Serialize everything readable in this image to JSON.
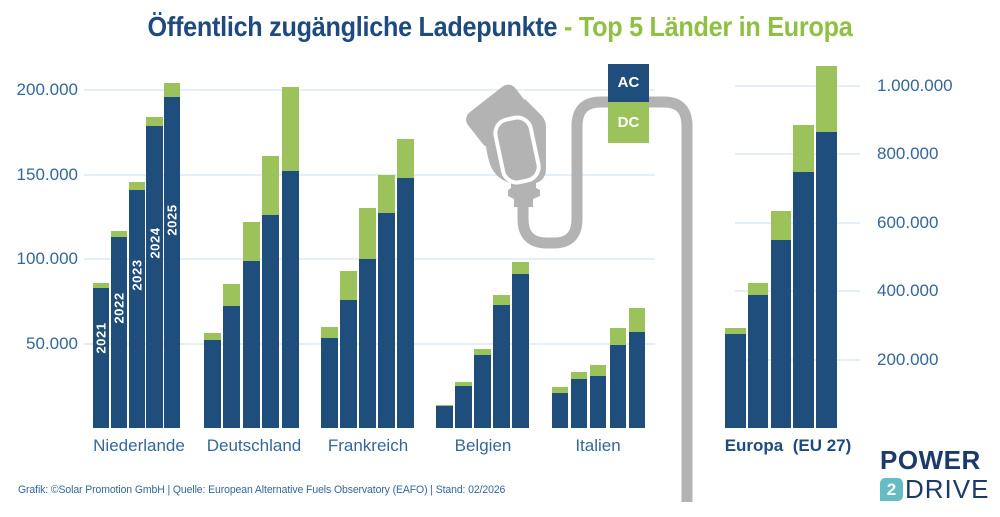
{
  "title": {
    "part1": "Öffentlich zugängliche Ladepunkte",
    "part2": "- Top 5 Länder in Europa"
  },
  "legend": {
    "ac": "AC",
    "dc": "DC"
  },
  "footer": "Grafik: ©Solar Promotion GmbH | Quelle: European Alternative Fuels Observatory (EAFO) | Stand: 02/2026",
  "logo": {
    "line1": "POWER",
    "number": "2",
    "line2": "DRIVE"
  },
  "icons": {
    "illustration": "ev-charging-plug-with-cable-icon"
  },
  "colors": {
    "bar_blue": "#1f4e7d",
    "bar_green": "#9cc25b",
    "title_blue": "#1d4a80",
    "title_green": "#8fc043",
    "axis_text": "#34679a",
    "gridline": "#e6eef7",
    "cable_gray": "#b3b3b3",
    "logo_navy": "#1b3a6b",
    "logo_teal": "#66bcc3"
  },
  "chart_data": {
    "type": "bar",
    "stacked": true,
    "grid": true,
    "years": [
      "2021",
      "2022",
      "2023",
      "2024",
      "2025"
    ],
    "series_names": [
      "AC",
      "DC"
    ],
    "left_axis": {
      "max": 200000,
      "ticks": [
        {
          "label": "200.000",
          "value": 200000
        },
        {
          "label": "150.000",
          "value": 150000
        },
        {
          "label": "100.000",
          "value": 100000
        },
        {
          "label": "50.000",
          "value": 50000
        }
      ]
    },
    "right_axis": {
      "max": 1000000,
      "ticks": [
        {
          "label": "1.000.000",
          "value": 1000000
        },
        {
          "label": "800.000",
          "value": 800000
        },
        {
          "label": "600.000",
          "value": 600000
        },
        {
          "label": "400.000",
          "value": 400000
        },
        {
          "label": "200.000",
          "value": 200000
        }
      ]
    },
    "groups": [
      {
        "label": "Niederlande",
        "axis": "left",
        "show_year_labels": true,
        "ac": [
          83000,
          113000,
          141000,
          179000,
          196000
        ],
        "dc": [
          3000,
          3500,
          4500,
          5000,
          8000
        ]
      },
      {
        "label": "Deutschland",
        "axis": "left",
        "ac": [
          52000,
          72000,
          99000,
          126000,
          152000
        ],
        "dc": [
          4000,
          13000,
          23000,
          35000,
          50000
        ]
      },
      {
        "label": "Frankreich",
        "axis": "left",
        "ac": [
          53000,
          76000,
          100000,
          127000,
          148000
        ],
        "dc": [
          7000,
          17000,
          30000,
          23000,
          23000
        ]
      },
      {
        "label": "Belgien",
        "axis": "left",
        "ac": [
          13000,
          25000,
          43000,
          73000,
          91000
        ],
        "dc": [
          500,
          2000,
          3500,
          5500,
          7000
        ]
      },
      {
        "label": "Italien",
        "axis": "left",
        "ac": [
          21000,
          29000,
          31000,
          49000,
          57000
        ],
        "dc": [
          3000,
          4300,
          6500,
          10500,
          14000
        ]
      },
      {
        "label": "Europa  (EU 27)",
        "axis": "right",
        "emphasis": true,
        "ac": [
          275000,
          390000,
          550000,
          750000,
          865000
        ],
        "dc": [
          18000,
          33000,
          85000,
          135000,
          195000
        ]
      }
    ]
  }
}
